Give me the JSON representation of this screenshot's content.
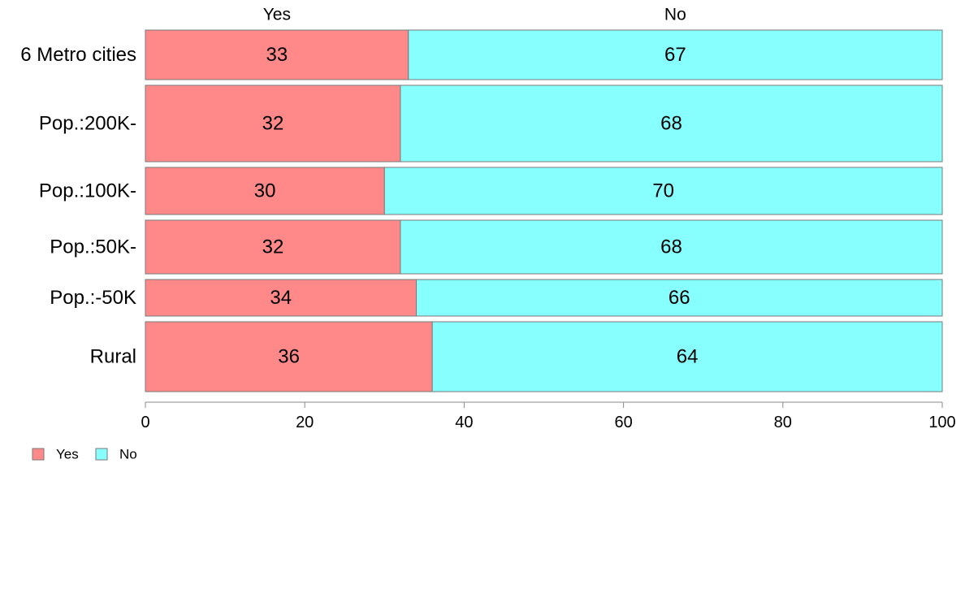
{
  "colors": {
    "yes": "#ff8888",
    "no": "#88ffff"
  },
  "chart_data": {
    "type": "bar",
    "orientation": "horizontal",
    "stacked": true,
    "categories": [
      "6 Metro cities",
      "Pop.:200K-",
      "Pop.:100K-",
      "Pop.:50K-",
      "Pop.:-50K",
      "Rural"
    ],
    "series": [
      {
        "name": "Yes",
        "values": [
          33,
          32,
          30,
          32,
          34,
          36
        ]
      },
      {
        "name": "No",
        "values": [
          67,
          68,
          70,
          68,
          66,
          64
        ]
      }
    ],
    "relative_bar_widths": [
      61,
      94,
      58,
      66,
      45,
      86
    ],
    "xlim": [
      0,
      100
    ],
    "xticks": [
      0,
      20,
      40,
      60,
      80,
      100
    ],
    "top_labels": [
      "Yes",
      "No"
    ],
    "legend": {
      "position": "bottom-left",
      "entries": [
        "Yes",
        "No"
      ]
    },
    "grid": false
  }
}
